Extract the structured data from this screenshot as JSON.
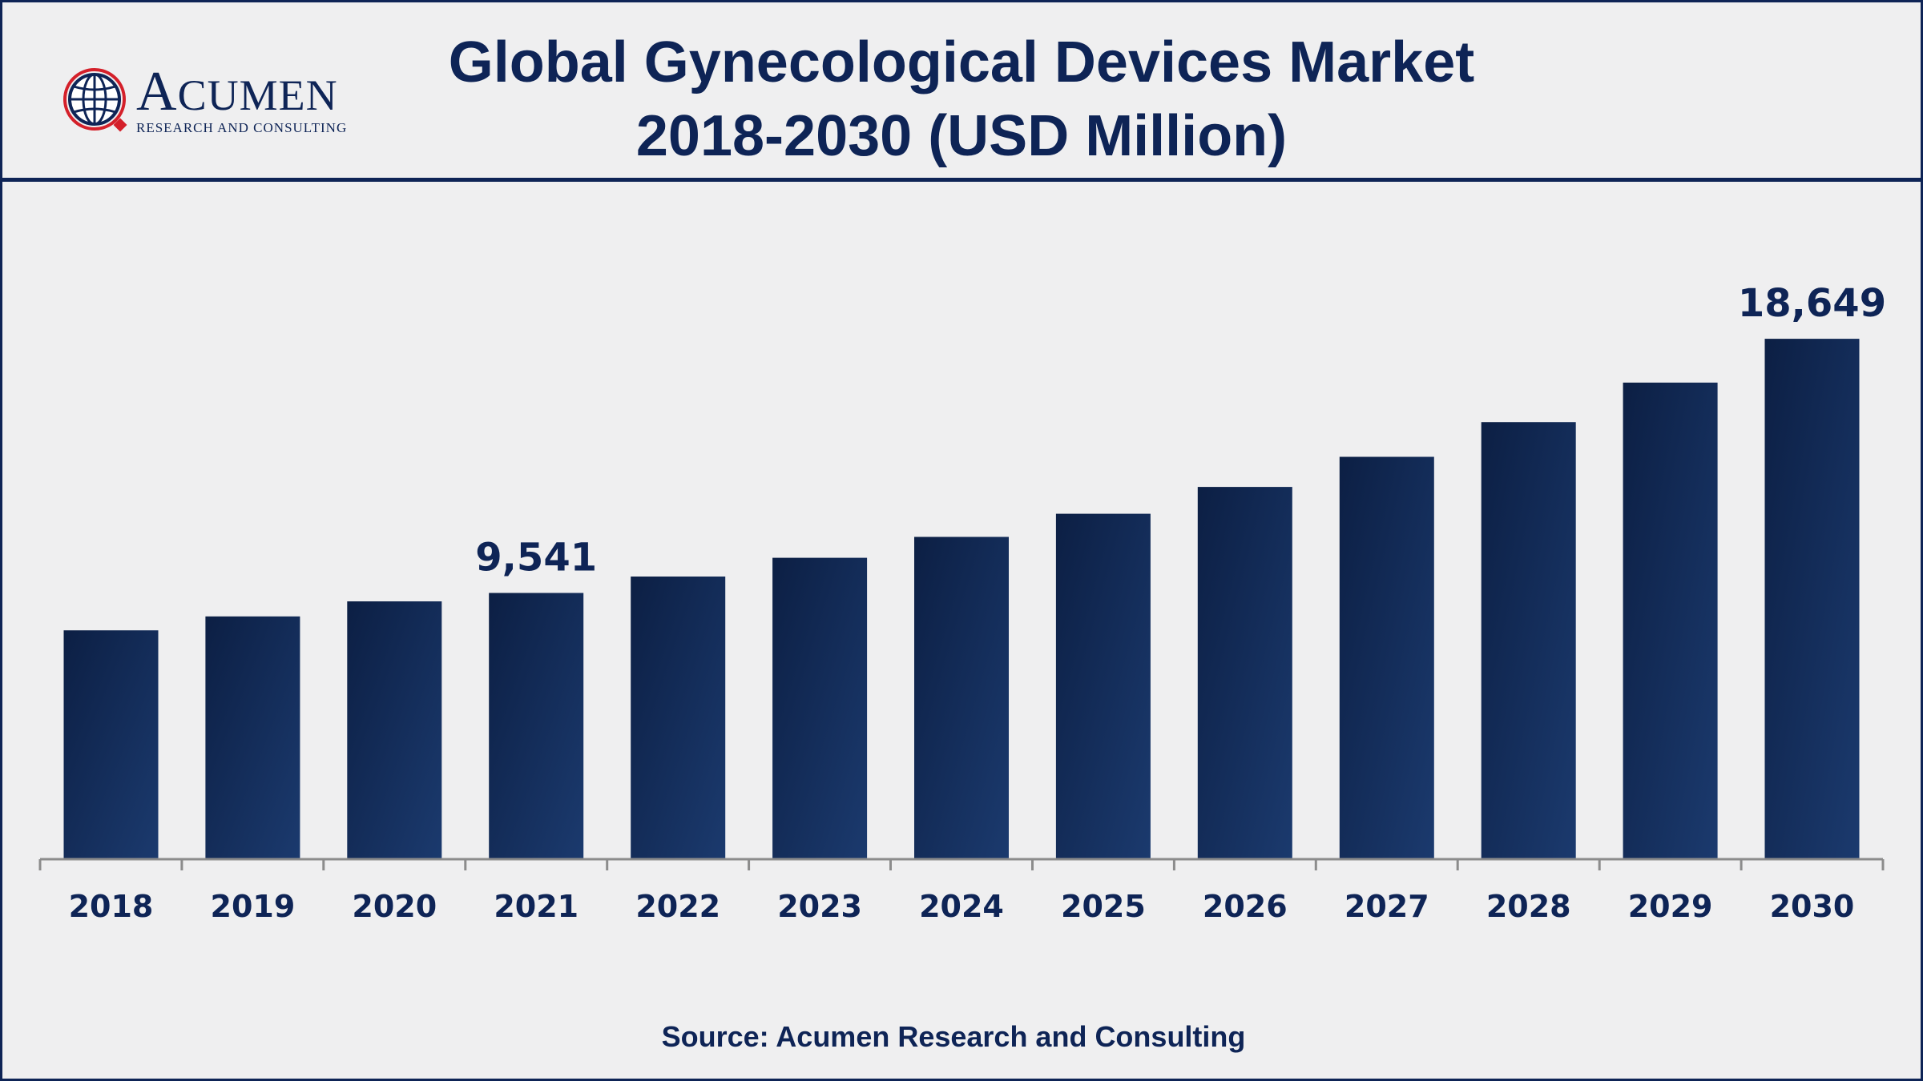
{
  "header": {
    "title_line1": "Global Gynecological Devices Market",
    "title_line2": "2018-2030 (USD Million)"
  },
  "logo": {
    "name_initial": "A",
    "name_rest": "CUMEN",
    "tagline": "RESEARCH AND CONSULTING"
  },
  "footer": {
    "source": "Source: Acumen Research and Consulting"
  },
  "colors": {
    "brand_navy": "#0e2456",
    "bar_dark": "#0c1f44",
    "bar_light": "#1b3a6e",
    "axis": "#8c8c8c",
    "logo_red": "#d4202a"
  },
  "chart_data": {
    "type": "bar",
    "title": "Global Gynecological Devices Market 2018-2030 (USD Million)",
    "xlabel": "",
    "ylabel": "",
    "categories": [
      "2018",
      "2019",
      "2020",
      "2021",
      "2022",
      "2023",
      "2024",
      "2025",
      "2026",
      "2027",
      "2028",
      "2029",
      "2030"
    ],
    "values": [
      8200,
      8700,
      9240,
      9541,
      10130,
      10800,
      11550,
      12380,
      13340,
      14420,
      15660,
      17080,
      18649
    ],
    "data_labels": [
      {
        "category": "2021",
        "text": "9,541"
      },
      {
        "category": "2030",
        "text": "18,649"
      }
    ],
    "ylim": [
      0,
      20000
    ],
    "grid": false,
    "legend": "none"
  }
}
